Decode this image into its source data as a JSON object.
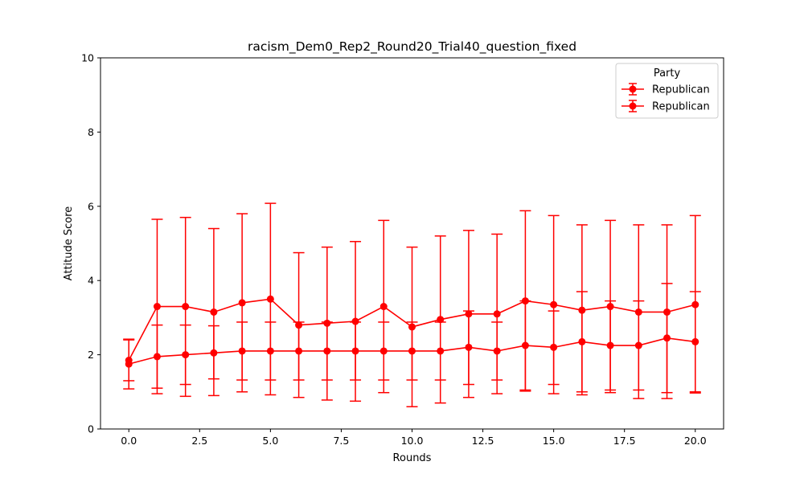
{
  "chart_data": {
    "type": "line",
    "title": "racism_Dem0_Rep2_Round20_Trial40_question_fixed",
    "xlabel": "Rounds",
    "ylabel": "Attitude Score",
    "xlim": [
      -1,
      21
    ],
    "ylim": [
      0,
      10
    ],
    "xticks": [
      "0.0",
      "2.5",
      "5.0",
      "7.5",
      "10.0",
      "12.5",
      "15.0",
      "17.5",
      "20.0"
    ],
    "xtick_values": [
      0,
      2.5,
      5,
      7.5,
      10,
      12.5,
      15,
      17.5,
      20
    ],
    "yticks": [
      "0",
      "2",
      "4",
      "6",
      "8",
      "10"
    ],
    "ytick_values": [
      0,
      2,
      4,
      6,
      8,
      10
    ],
    "grid": false,
    "legend": {
      "title": "Party",
      "placement": "top-right"
    },
    "x": [
      0,
      1,
      2,
      3,
      4,
      5,
      6,
      7,
      8,
      9,
      10,
      11,
      12,
      13,
      14,
      15,
      16,
      17,
      18,
      19,
      20
    ],
    "series": [
      {
        "name": "Republican",
        "color": "#ff0000",
        "marker": "circle",
        "values": [
          1.85,
          3.3,
          3.3,
          3.15,
          3.4,
          3.5,
          2.8,
          2.85,
          2.9,
          3.3,
          2.75,
          2.95,
          3.1,
          3.1,
          3.45,
          3.35,
          3.2,
          3.3,
          3.15,
          3.15,
          3.35
        ],
        "err_low": [
          1.3,
          0.95,
          0.88,
          0.9,
          1.0,
          0.92,
          0.85,
          0.78,
          0.75,
          0.98,
          0.6,
          0.7,
          0.85,
          0.95,
          1.02,
          0.95,
          0.92,
          0.98,
          0.82,
          0.82,
          0.97
        ],
        "err_high": [
          2.4,
          5.65,
          5.7,
          5.4,
          5.8,
          6.08,
          4.75,
          4.9,
          5.05,
          5.62,
          4.9,
          5.2,
          5.35,
          5.25,
          5.88,
          5.75,
          5.5,
          5.62,
          5.5,
          5.5,
          5.75
        ]
      },
      {
        "name": "Republican",
        "color": "#ff0000",
        "marker": "circle",
        "values": [
          1.75,
          1.95,
          2.0,
          2.05,
          2.1,
          2.1,
          2.1,
          2.1,
          2.1,
          2.1,
          2.1,
          2.1,
          2.2,
          2.1,
          2.25,
          2.2,
          2.35,
          2.25,
          2.25,
          2.45,
          2.35
        ],
        "err_low": [
          1.08,
          1.1,
          1.2,
          1.35,
          1.32,
          1.32,
          1.32,
          1.32,
          1.32,
          1.32,
          1.32,
          1.32,
          1.2,
          1.32,
          1.05,
          1.2,
          1.0,
          1.05,
          1.05,
          0.98,
          1.0
        ],
        "err_high": [
          2.42,
          2.8,
          2.8,
          2.78,
          2.88,
          2.88,
          2.88,
          2.88,
          2.88,
          2.88,
          2.88,
          2.88,
          3.18,
          2.88,
          3.45,
          3.18,
          3.7,
          3.45,
          3.45,
          3.92,
          3.7
        ]
      }
    ]
  }
}
